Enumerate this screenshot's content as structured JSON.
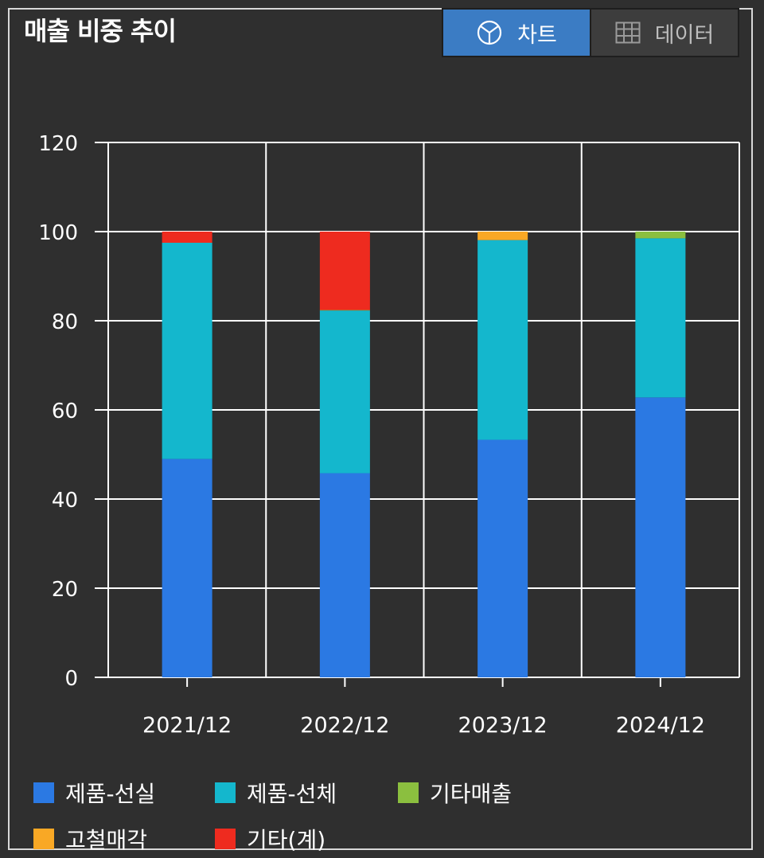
{
  "header": {
    "title": "매출 비중 추이",
    "chart_tab_label": "차트",
    "data_tab_label": "데이터"
  },
  "colors": {
    "background": "#2f2f2f",
    "grid": "#ffffff",
    "tab_active": "#3b7cc4"
  },
  "chart_data": {
    "type": "bar",
    "stacked": true,
    "title": "매출 비중 추이",
    "xlabel": "",
    "ylabel": "",
    "ylim": [
      0,
      120
    ],
    "yticks": [
      0,
      20,
      40,
      60,
      80,
      100,
      120
    ],
    "grid": true,
    "legend_position": "bottom",
    "categories": [
      "2021/12",
      "2022/12",
      "2023/12",
      "2024/12"
    ],
    "series": [
      {
        "name": "제품-선실",
        "color": "#2b79e3",
        "values": [
          49,
          45.8,
          53.3,
          62.8
        ]
      },
      {
        "name": "제품-선체",
        "color": "#14b7cd",
        "values": [
          48.5,
          36.5,
          44.8,
          35.7
        ]
      },
      {
        "name": "기타매출",
        "color": "#8bbf3f",
        "values": [
          0,
          0.1,
          0,
          1.5
        ]
      },
      {
        "name": "고철매각",
        "color": "#f9a825",
        "values": [
          0,
          0,
          1.9,
          0
        ]
      },
      {
        "name": "기타(계)",
        "color": "#ee2b1f",
        "values": [
          2.5,
          17.6,
          0,
          0
        ]
      }
    ]
  }
}
